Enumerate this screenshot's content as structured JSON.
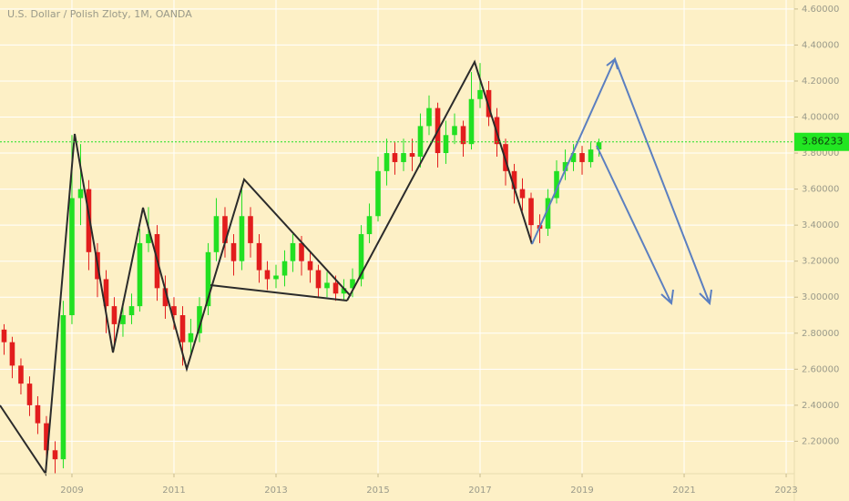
{
  "chart_data": {
    "type": "candlestick",
    "title": "U.S. Dollar / Polish Zloty, 1M, OANDA",
    "x": [
      2007.67,
      2007.83,
      2008,
      2008.17,
      2008.33,
      2008.5,
      2008.67,
      2008.83,
      2009,
      2009.17,
      2009.33,
      2009.5,
      2009.67,
      2009.83,
      2010,
      2010.17,
      2010.33,
      2010.5,
      2010.67,
      2010.83,
      2011,
      2011.17,
      2011.33,
      2011.5,
      2011.67,
      2011.83,
      2012,
      2012.17,
      2012.33,
      2012.5,
      2012.67,
      2012.83,
      2013,
      2013.17,
      2013.33,
      2013.5,
      2013.67,
      2013.83,
      2014,
      2014.17,
      2014.33,
      2014.5,
      2014.67,
      2014.83,
      2015,
      2015.17,
      2015.33,
      2015.5,
      2015.67,
      2015.83,
      2016,
      2016.17,
      2016.33,
      2016.5,
      2016.67,
      2016.83,
      2017,
      2017.17,
      2017.33,
      2017.5,
      2017.67,
      2017.83,
      2018,
      2018.17,
      2018.33,
      2018.5,
      2018.67,
      2018.83,
      2019,
      2019.17,
      2019.33
    ],
    "open": [
      2.82,
      2.75,
      2.62,
      2.52,
      2.4,
      2.3,
      2.15,
      2.1,
      2.9,
      3.55,
      3.6,
      3.25,
      3.1,
      2.95,
      2.85,
      2.9,
      2.95,
      3.3,
      3.35,
      3.05,
      2.95,
      2.9,
      2.75,
      2.8,
      2.95,
      3.25,
      3.45,
      3.3,
      3.2,
      3.45,
      3.3,
      3.15,
      3.1,
      3.12,
      3.2,
      3.3,
      3.2,
      3.15,
      3.05,
      3.08,
      3.02,
      3.05,
      3.1,
      3.35,
      3.45,
      3.7,
      3.8,
      3.75,
      3.8,
      3.78,
      3.95,
      4.05,
      3.8,
      3.9,
      3.95,
      3.85,
      4.1,
      4.15,
      4.0,
      3.85,
      3.7,
      3.6,
      3.55,
      3.4,
      3.38,
      3.55,
      3.7,
      3.75,
      3.8,
      3.75,
      3.82
    ],
    "high": [
      2.85,
      2.78,
      2.66,
      2.56,
      2.45,
      2.34,
      2.2,
      2.98,
      3.9,
      3.85,
      3.65,
      3.3,
      3.15,
      3.0,
      2.98,
      3.02,
      3.38,
      3.5,
      3.4,
      3.12,
      3.0,
      2.95,
      2.88,
      3.0,
      3.3,
      3.55,
      3.5,
      3.35,
      3.62,
      3.5,
      3.35,
      3.2,
      3.18,
      3.26,
      3.35,
      3.34,
      3.25,
      3.18,
      3.14,
      3.12,
      3.1,
      3.16,
      3.4,
      3.52,
      3.78,
      3.88,
      3.86,
      3.88,
      3.88,
      4.02,
      4.12,
      4.08,
      3.98,
      4.02,
      3.98,
      4.25,
      4.3,
      4.2,
      4.05,
      3.88,
      3.74,
      3.66,
      3.58,
      3.46,
      3.6,
      3.76,
      3.82,
      3.85,
      3.84,
      3.86,
      3.88
    ],
    "low": [
      2.68,
      2.55,
      2.46,
      2.34,
      2.24,
      2.08,
      2.02,
      2.05,
      2.85,
      3.4,
      3.15,
      3.0,
      2.8,
      2.72,
      2.78,
      2.85,
      2.92,
      3.25,
      2.98,
      2.88,
      2.82,
      2.62,
      2.68,
      2.75,
      2.9,
      3.2,
      3.22,
      3.12,
      3.15,
      3.22,
      3.08,
      3.04,
      3.05,
      3.06,
      3.14,
      3.12,
      3.08,
      3.0,
      3.0,
      2.98,
      2.98,
      3.0,
      3.06,
      3.3,
      3.42,
      3.62,
      3.68,
      3.7,
      3.7,
      3.72,
      3.9,
      3.72,
      3.74,
      3.85,
      3.78,
      3.82,
      4.05,
      3.95,
      3.78,
      3.62,
      3.52,
      3.48,
      3.32,
      3.3,
      3.34,
      3.52,
      3.65,
      3.7,
      3.68,
      3.72,
      3.78
    ],
    "close": [
      2.75,
      2.62,
      2.52,
      2.4,
      2.3,
      2.15,
      2.1,
      2.9,
      3.55,
      3.6,
      3.25,
      3.1,
      2.95,
      2.85,
      2.9,
      2.95,
      3.3,
      3.35,
      3.05,
      2.95,
      2.9,
      2.75,
      2.8,
      2.95,
      3.25,
      3.45,
      3.3,
      3.2,
      3.45,
      3.3,
      3.15,
      3.1,
      3.12,
      3.2,
      3.3,
      3.2,
      3.15,
      3.05,
      3.08,
      3.02,
      3.05,
      3.1,
      3.35,
      3.45,
      3.7,
      3.8,
      3.75,
      3.8,
      3.78,
      3.95,
      4.05,
      3.8,
      3.9,
      3.95,
      3.85,
      4.1,
      4.15,
      4.0,
      3.85,
      3.7,
      3.6,
      3.55,
      3.4,
      3.38,
      3.55,
      3.7,
      3.75,
      3.8,
      3.75,
      3.82,
      3.86
    ],
    "up_color": "#22e022",
    "down_color": "#e21d1d",
    "last_price": 3.86233,
    "xlim": [
      2007.59,
      2023.16
    ],
    "ylim": [
      2.02,
      4.65
    ],
    "xticks": [
      2009,
      2011,
      2013,
      2015,
      2017,
      2019,
      2021,
      2023
    ],
    "yticks": [
      {
        "value": 2.2,
        "label": "2.20000"
      },
      {
        "value": 2.4,
        "label": "2.40000"
      },
      {
        "value": 2.6,
        "label": "2.60000"
      },
      {
        "value": 2.8,
        "label": "2.80000"
      },
      {
        "value": 3.0,
        "label": "3.00000"
      },
      {
        "value": 3.2,
        "label": "3.20000"
      },
      {
        "value": 3.4,
        "label": "3.40000"
      },
      {
        "value": 3.6,
        "label": "3.60000"
      },
      {
        "value": 3.8,
        "label": "3.80000"
      },
      {
        "value": 4.0,
        "label": "4.00000"
      },
      {
        "value": 4.2,
        "label": "4.20000"
      },
      {
        "value": 4.4,
        "label": "4.40000"
      },
      {
        "value": 4.6,
        "label": "4.60000"
      }
    ],
    "grid": true
  }
}
